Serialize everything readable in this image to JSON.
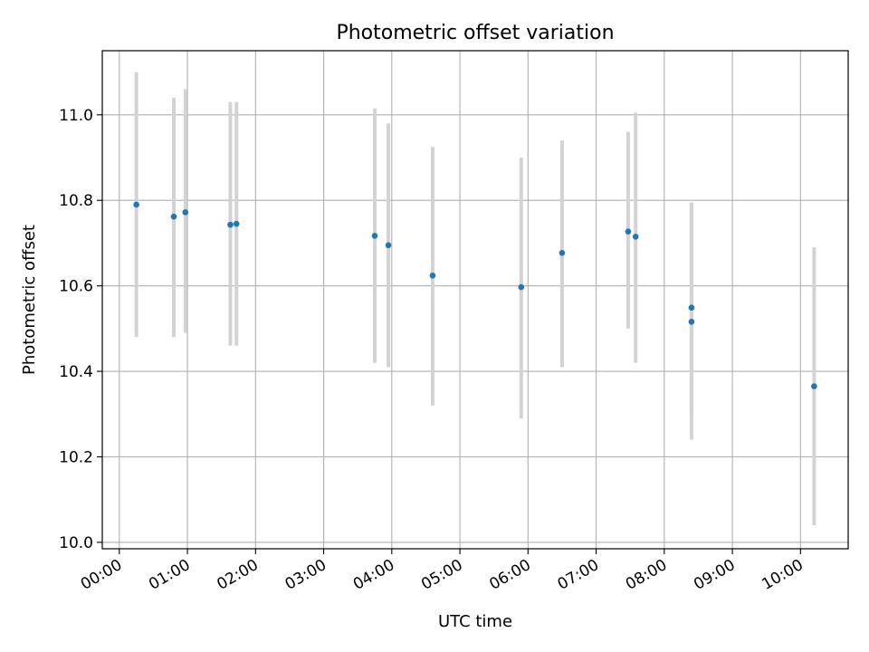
{
  "chart_data": {
    "type": "scatter",
    "title": "Photometric offset variation",
    "xlabel": "UTC time",
    "ylabel": "Photometric offset",
    "x_unit": "hours UTC",
    "xlim": [
      -0.25,
      10.7
    ],
    "ylim": [
      9.985,
      11.15
    ],
    "grid": true,
    "x_ticks": [
      {
        "value": 0,
        "label": "00:00"
      },
      {
        "value": 1,
        "label": "01:00"
      },
      {
        "value": 2,
        "label": "02:00"
      },
      {
        "value": 3,
        "label": "03:00"
      },
      {
        "value": 4,
        "label": "04:00"
      },
      {
        "value": 5,
        "label": "05:00"
      },
      {
        "value": 6,
        "label": "06:00"
      },
      {
        "value": 7,
        "label": "07:00"
      },
      {
        "value": 8,
        "label": "08:00"
      },
      {
        "value": 9,
        "label": "09:00"
      },
      {
        "value": 10,
        "label": "10:00"
      }
    ],
    "y_ticks": [
      {
        "value": 10.0,
        "label": "10.0"
      },
      {
        "value": 10.2,
        "label": "10.2"
      },
      {
        "value": 10.4,
        "label": "10.4"
      },
      {
        "value": 10.6,
        "label": "10.6"
      },
      {
        "value": 10.8,
        "label": "10.8"
      },
      {
        "value": 11.0,
        "label": "11.0"
      }
    ],
    "colors": {
      "point": "#1f77b4",
      "errorbar": "#d3d3d3",
      "grid": "#b0b0b0"
    },
    "points": [
      {
        "x": 0.25,
        "y": 10.79,
        "low": 10.48,
        "high": 11.1
      },
      {
        "x": 0.8,
        "y": 10.762,
        "low": 10.48,
        "high": 11.04
      },
      {
        "x": 0.97,
        "y": 10.772,
        "low": 10.49,
        "high": 11.06
      },
      {
        "x": 1.63,
        "y": 10.743,
        "low": 10.46,
        "high": 11.03
      },
      {
        "x": 1.72,
        "y": 10.745,
        "low": 10.46,
        "high": 11.03
      },
      {
        "x": 3.75,
        "y": 10.717,
        "low": 10.42,
        "high": 11.015
      },
      {
        "x": 3.95,
        "y": 10.695,
        "low": 10.41,
        "high": 10.98
      },
      {
        "x": 4.6,
        "y": 10.624,
        "low": 10.32,
        "high": 10.925
      },
      {
        "x": 5.9,
        "y": 10.597,
        "low": 10.29,
        "high": 10.9
      },
      {
        "x": 6.5,
        "y": 10.677,
        "low": 10.41,
        "high": 10.94
      },
      {
        "x": 7.47,
        "y": 10.727,
        "low": 10.5,
        "high": 10.96
      },
      {
        "x": 7.58,
        "y": 10.715,
        "low": 10.42,
        "high": 11.005
      },
      {
        "x": 8.4,
        "y": 10.549,
        "low": 10.3,
        "high": 10.795
      },
      {
        "x": 8.4,
        "y": 10.516,
        "low": 10.24,
        "high": 10.795
      },
      {
        "x": 10.2,
        "y": 10.365,
        "low": 10.04,
        "high": 10.69
      }
    ]
  }
}
